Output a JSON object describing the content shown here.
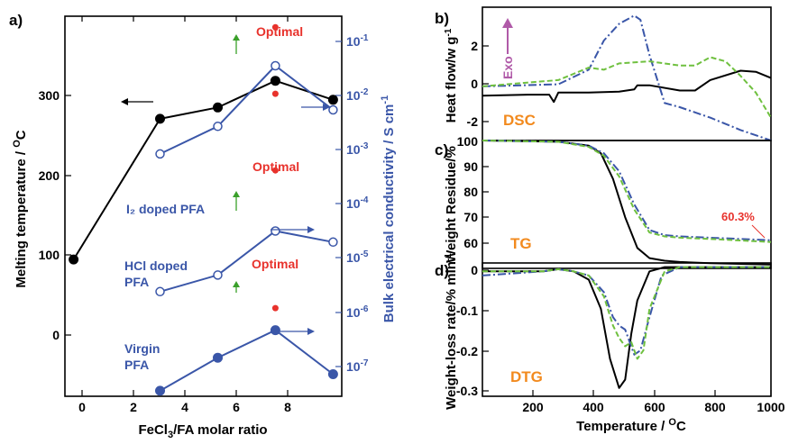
{
  "chart_data": [
    {
      "panel": "a)",
      "type": "line",
      "xlabel": "FeCl3/FA molar ratio",
      "ylabel_left": "Melting temperature / °C",
      "ylabel_right": "Bulk electrical conductivity / S cm-1",
      "xlim": [
        -0.3,
        9.3
      ],
      "ylim_left": [
        -70,
        430
      ],
      "ylim_right_log": [
        -7.3,
        -0.4
      ],
      "x_ticks": [
        "0",
        "2",
        "4",
        "6",
        "8"
      ],
      "y_left_ticks": [
        "0",
        "100",
        "200",
        "300"
      ],
      "y_right_ticks": [
        "10-7",
        "10-6",
        "10-5",
        "10-4",
        "10-3",
        "10-2",
        "10-1"
      ],
      "series": [
        {
          "axis": "left",
          "marker": "filled-black",
          "color": "#000000",
          "x": [
            0,
            3,
            5,
            7,
            9
          ],
          "y": [
            110,
            295,
            310,
            345,
            320
          ]
        },
        {
          "axis": "right",
          "marker": "open-blue",
          "color": "#3a56a8",
          "x": [
            3,
            5,
            7,
            9
          ],
          "log10_sigma": [
            -2.9,
            -2.4,
            -1.3,
            -2.1
          ]
        },
        {
          "axis": "right",
          "marker": "open-blue",
          "color": "#3a56a8",
          "x": [
            3,
            5,
            7,
            9
          ],
          "log10_sigma": [
            -5.4,
            -5.1,
            -4.3,
            -4.5
          ]
        },
        {
          "axis": "right",
          "marker": "filled-blue",
          "color": "#3a56a8",
          "x": [
            3,
            5,
            7,
            9
          ],
          "log10_sigma": [
            -7.2,
            -6.6,
            -6.1,
            -6.9
          ]
        }
      ],
      "optimal_points": [
        {
          "axis": "right",
          "x": 7,
          "log10_sigma": -0.6
        },
        {
          "axis": "right",
          "x": 7,
          "log10_sigma": -3.2
        },
        {
          "axis": "right",
          "x": 7,
          "log10_sigma": -5.7
        },
        {
          "axis": "left",
          "x": 7,
          "y": 328
        }
      ],
      "annotations": {
        "optimal": "Optimal",
        "i2": "I₂ doped PFA",
        "hcl_1": "HCl doped",
        "hcl_2": "PFA",
        "virgin_1": "Virgin",
        "virgin_2": "PFA"
      }
    },
    {
      "panel": "b)",
      "type": "line",
      "name": "DSC",
      "ylabel": "Heat flow/w g-1",
      "xlim": [
        50,
        1000
      ],
      "ylim": [
        -2.6,
        3.8
      ],
      "y_ticks": [
        "-2",
        "0",
        "2"
      ],
      "exo_label": "Exo",
      "series": [
        {
          "style": "solid-black",
          "color": "#000000",
          "x": [
            50,
            200,
            270,
            285,
            300,
            400,
            500,
            550,
            560,
            600,
            700,
            750,
            800,
            900,
            950,
            1000
          ],
          "y": [
            -0.45,
            -0.4,
            -0.4,
            -0.75,
            -0.3,
            -0.3,
            -0.25,
            -0.15,
            0.05,
            0.05,
            -0.2,
            -0.2,
            0.3,
            0.75,
            0.7,
            0.4
          ]
        },
        {
          "style": "dash-dot-blue",
          "color": "#3a56a8",
          "x": [
            50,
            300,
            400,
            450,
            500,
            550,
            570,
            600,
            650,
            700,
            800,
            900,
            1000
          ],
          "y": [
            0,
            0.1,
            0.8,
            2.2,
            3.0,
            3.4,
            3.2,
            1.5,
            -0.8,
            -1.0,
            -1.5,
            -2.1,
            -2.6
          ]
        },
        {
          "style": "dashed-green",
          "color": "#6fc03f",
          "x": [
            50,
            300,
            400,
            450,
            500,
            600,
            700,
            750,
            800,
            850,
            900,
            950,
            1000
          ],
          "y": [
            0,
            0.3,
            0.9,
            0.8,
            1.1,
            1.2,
            1.0,
            1.0,
            1.4,
            1.2,
            0.5,
            -0.3,
            -1.5
          ]
        }
      ]
    },
    {
      "panel": "c)",
      "type": "line",
      "name": "TG",
      "ylabel": "Weight Residue/%",
      "xlim": [
        50,
        1000
      ],
      "ylim": [
        50,
        100
      ],
      "y_ticks": [
        "60",
        "70",
        "80",
        "90",
        "100"
      ],
      "annotation": "60.3%",
      "series": [
        {
          "style": "solid-black",
          "color": "#000000",
          "x": [
            50,
            300,
            400,
            440,
            480,
            520,
            560,
            600,
            650,
            700,
            800,
            1000
          ],
          "y": [
            100,
            99.5,
            98,
            95,
            85,
            70,
            58,
            54,
            53,
            52.5,
            52,
            51.5
          ]
        },
        {
          "style": "dash-dot-blue",
          "color": "#3a56a8",
          "x": [
            50,
            300,
            400,
            450,
            500,
            550,
            600,
            650,
            700,
            800,
            1000
          ],
          "y": [
            100,
            99.5,
            98,
            95,
            88,
            75,
            65,
            63,
            62.5,
            62,
            61
          ]
        },
        {
          "style": "dashed-green",
          "color": "#6fc03f",
          "x": [
            50,
            300,
            400,
            450,
            500,
            550,
            600,
            650,
            700,
            800,
            1000
          ],
          "y": [
            100,
            99.5,
            97.5,
            94,
            86,
            73,
            64,
            62.5,
            62,
            61.5,
            60.3
          ]
        }
      ]
    },
    {
      "panel": "d)",
      "type": "line",
      "name": "DTG",
      "xlabel": "Temperature / °C",
      "ylabel": "Weight-loss rate/% min-1",
      "xlim": [
        50,
        1000
      ],
      "ylim": [
        -0.31,
        0.01
      ],
      "x_ticks": [
        "200",
        "400",
        "600",
        "800",
        "1000"
      ],
      "y_ticks": [
        "-0.3",
        "-0.2",
        "-0.1",
        "0"
      ],
      "series": [
        {
          "style": "solid-black",
          "color": "#000000",
          "x": [
            50,
            250,
            300,
            350,
            400,
            440,
            470,
            500,
            520,
            540,
            560,
            600,
            650,
            700,
            1000
          ],
          "y": [
            -0.01,
            -0.01,
            -0.005,
            -0.01,
            -0.03,
            -0.1,
            -0.22,
            -0.29,
            -0.27,
            -0.16,
            -0.08,
            -0.01,
            0,
            0,
            0
          ]
        },
        {
          "style": "dash-dot-blue",
          "color": "#3a56a8",
          "x": [
            50,
            250,
            300,
            350,
            400,
            450,
            480,
            500,
            520,
            550,
            570,
            600,
            640,
            700,
            1000
          ],
          "y": [
            -0.02,
            -0.01,
            -0.005,
            -0.01,
            -0.02,
            -0.06,
            -0.12,
            -0.14,
            -0.15,
            -0.21,
            -0.2,
            -0.12,
            -0.02,
            0,
            0
          ]
        },
        {
          "style": "dashed-green",
          "color": "#6fc03f",
          "x": [
            50,
            250,
            300,
            350,
            400,
            450,
            480,
            500,
            520,
            540,
            560,
            580,
            600,
            650,
            700,
            1000
          ],
          "y": [
            -0.01,
            -0.01,
            -0.005,
            -0.01,
            -0.02,
            -0.07,
            -0.14,
            -0.17,
            -0.19,
            -0.18,
            -0.22,
            -0.2,
            -0.1,
            -0.01,
            0,
            0
          ]
        }
      ]
    }
  ]
}
